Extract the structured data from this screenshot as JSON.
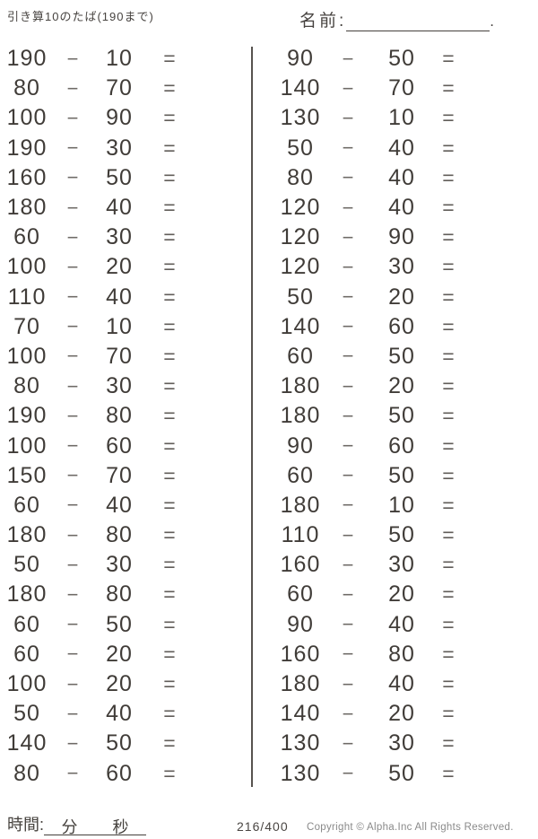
{
  "page": {
    "title": "引き算10のたば(190まで)",
    "name_label": "名前:",
    "name_line_period": "."
  },
  "problems": {
    "minus_sign": "−",
    "equals_sign": "=",
    "left": [
      {
        "a": "190",
        "b": "10"
      },
      {
        "a": "80",
        "b": "70"
      },
      {
        "a": "100",
        "b": "90"
      },
      {
        "a": "190",
        "b": "30"
      },
      {
        "a": "160",
        "b": "50"
      },
      {
        "a": "180",
        "b": "40"
      },
      {
        "a": "60",
        "b": "30"
      },
      {
        "a": "100",
        "b": "20"
      },
      {
        "a": "110",
        "b": "40"
      },
      {
        "a": "70",
        "b": "10"
      },
      {
        "a": "100",
        "b": "70"
      },
      {
        "a": "80",
        "b": "30"
      },
      {
        "a": "190",
        "b": "80"
      },
      {
        "a": "100",
        "b": "60"
      },
      {
        "a": "150",
        "b": "70"
      },
      {
        "a": "60",
        "b": "40"
      },
      {
        "a": "180",
        "b": "80"
      },
      {
        "a": "50",
        "b": "30"
      },
      {
        "a": "180",
        "b": "80"
      },
      {
        "a": "60",
        "b": "50"
      },
      {
        "a": "60",
        "b": "20"
      },
      {
        "a": "100",
        "b": "20"
      },
      {
        "a": "50",
        "b": "40"
      },
      {
        "a": "140",
        "b": "50"
      },
      {
        "a": "80",
        "b": "60"
      }
    ],
    "right": [
      {
        "a": "90",
        "b": "50"
      },
      {
        "a": "140",
        "b": "70"
      },
      {
        "a": "130",
        "b": "10"
      },
      {
        "a": "50",
        "b": "40"
      },
      {
        "a": "80",
        "b": "40"
      },
      {
        "a": "120",
        "b": "40"
      },
      {
        "a": "120",
        "b": "90"
      },
      {
        "a": "120",
        "b": "30"
      },
      {
        "a": "50",
        "b": "20"
      },
      {
        "a": "140",
        "b": "60"
      },
      {
        "a": "60",
        "b": "50"
      },
      {
        "a": "180",
        "b": "20"
      },
      {
        "a": "180",
        "b": "50"
      },
      {
        "a": "90",
        "b": "60"
      },
      {
        "a": "60",
        "b": "50"
      },
      {
        "a": "180",
        "b": "10"
      },
      {
        "a": "110",
        "b": "50"
      },
      {
        "a": "160",
        "b": "30"
      },
      {
        "a": "60",
        "b": "20"
      },
      {
        "a": "90",
        "b": "40"
      },
      {
        "a": "160",
        "b": "80"
      },
      {
        "a": "180",
        "b": "40"
      },
      {
        "a": "140",
        "b": "20"
      },
      {
        "a": "130",
        "b": "30"
      },
      {
        "a": "130",
        "b": "50"
      }
    ]
  },
  "footer": {
    "time_label": "時間:",
    "minutes_label": "分",
    "seconds_label": "秒",
    "page_number": "216/400",
    "copyright": "Copyright ©  Alpha.Inc All Rights Reserved."
  },
  "colors": {
    "paper": "#ffffff",
    "text": "#3d3935",
    "operator": "#6e6a66",
    "copyright_text": "#8a8a8a"
  }
}
